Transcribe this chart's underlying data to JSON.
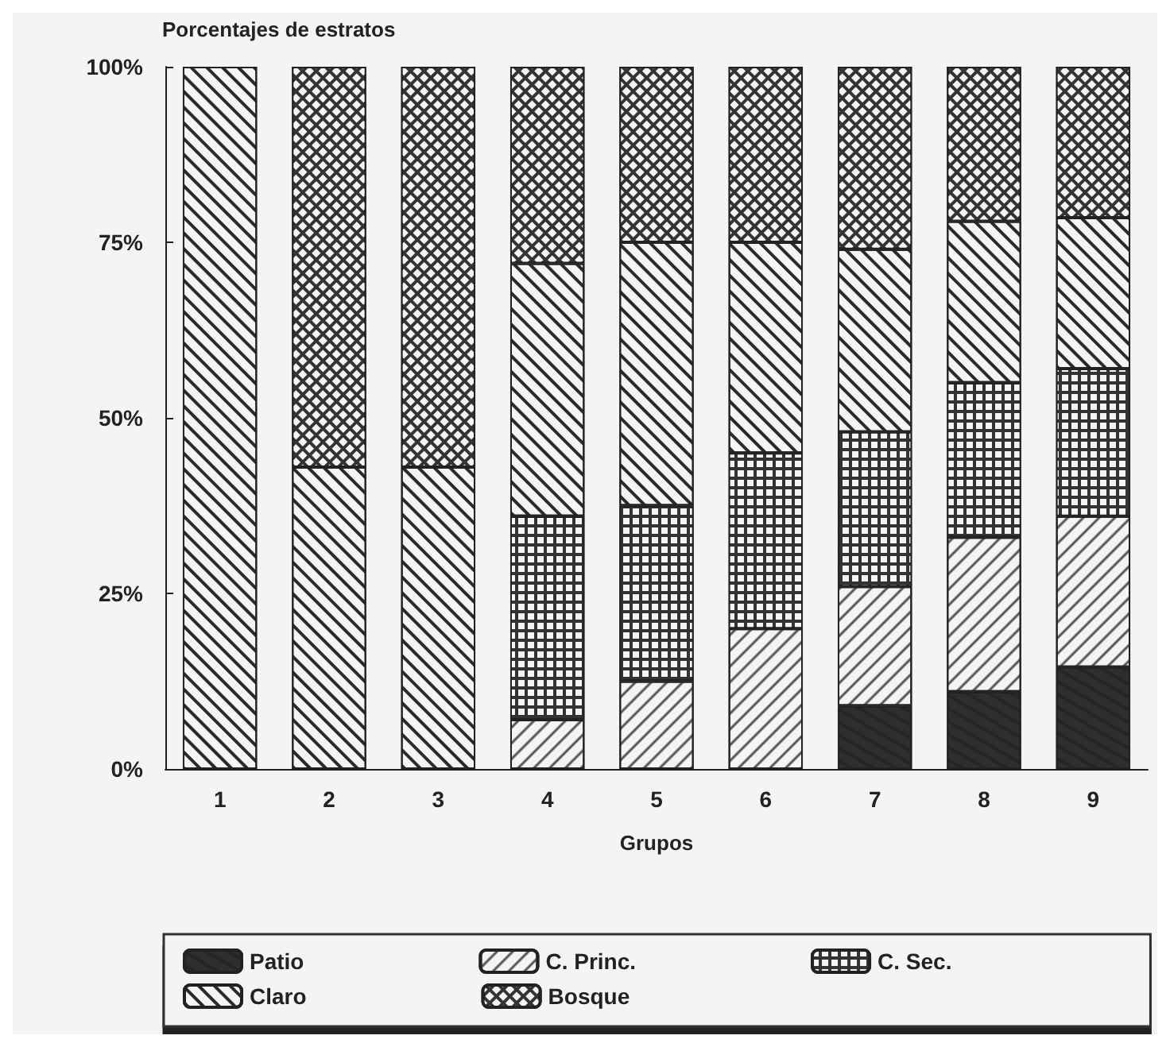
{
  "chart_data": {
    "type": "bar",
    "stacked": true,
    "ylabel": "Porcentajes de estratos",
    "xlabel": "Grupos",
    "categories": [
      "1",
      "2",
      "3",
      "4",
      "5",
      "6",
      "7",
      "8",
      "9"
    ],
    "series": [
      {
        "name": "Patio",
        "color": "#2e2e2e",
        "values": [
          0,
          0,
          0,
          0,
          0,
          0,
          9,
          11,
          14.5
        ]
      },
      {
        "name": "C. Princ.",
        "color": "#f4f4f2",
        "values": [
          0,
          0,
          0,
          7,
          12.5,
          20,
          17,
          22,
          21.5
        ]
      },
      {
        "name": "C. Sec.",
        "color": "#333333",
        "values": [
          0,
          0,
          0,
          29,
          25,
          25,
          22,
          22,
          21
        ]
      },
      {
        "name": "Claro",
        "color": "#f4f4f2",
        "values": [
          100,
          43,
          43,
          36,
          37.5,
          30,
          26,
          23,
          21.5
        ]
      },
      {
        "name": "Bosque",
        "color": "#333333",
        "values": [
          0,
          57,
          57,
          28,
          25,
          25,
          26,
          22,
          21.5
        ]
      }
    ],
    "ylim": [
      0,
      100
    ],
    "yticks": [
      {
        "value": 0,
        "label": "0%"
      },
      {
        "value": 25,
        "label": "25%"
      },
      {
        "value": 50,
        "label": "50%"
      },
      {
        "value": 75,
        "label": "75%"
      },
      {
        "value": 100,
        "label": "100%"
      }
    ],
    "grid": false,
    "legend": "bottom"
  }
}
